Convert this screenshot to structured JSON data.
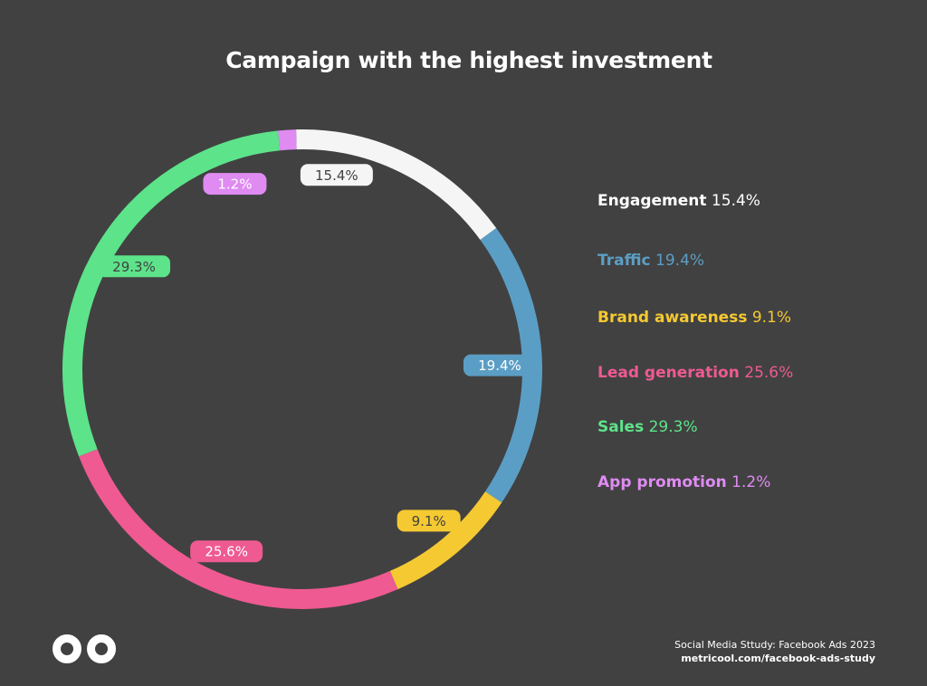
{
  "title": "Campaign with the highest investment",
  "chart_data": {
    "type": "pie",
    "style": "donut-ring",
    "legend_position": "right",
    "series": [
      {
        "name": "Engagement",
        "value": 15.4,
        "label": "15.4%",
        "color": "#f5f5f5",
        "text_color": "#ffffff",
        "label_text_color": "#414141"
      },
      {
        "name": "Traffic",
        "value": 19.4,
        "label": "19.4%",
        "color": "#5b9ec5",
        "text_color": "#5b9ec5",
        "label_text_color": "#ffffff"
      },
      {
        "name": "Brand awareness",
        "value": 9.1,
        "label": "9.1%",
        "color": "#f5c932",
        "text_color": "#f5c932",
        "label_text_color": "#414141"
      },
      {
        "name": "Lead generation",
        "value": 25.6,
        "label": "25.6%",
        "color": "#ee5a91",
        "text_color": "#ee5a91",
        "label_text_color": "#ffffff"
      },
      {
        "name": "Sales",
        "value": 29.3,
        "label": "29.3%",
        "color": "#5de38a",
        "text_color": "#5de38a",
        "label_text_color": "#414141"
      },
      {
        "name": "App promotion",
        "value": 1.2,
        "label": "1.2%",
        "color": "#df8bf2",
        "text_color": "#df8bf2",
        "label_text_color": "#ffffff"
      }
    ]
  },
  "footer": {
    "source": "Social Media Sttudy: Facebook Ads 2023",
    "url": "metricool.com/facebook-ads-study"
  },
  "logo_icon": "infinity-logo-icon"
}
